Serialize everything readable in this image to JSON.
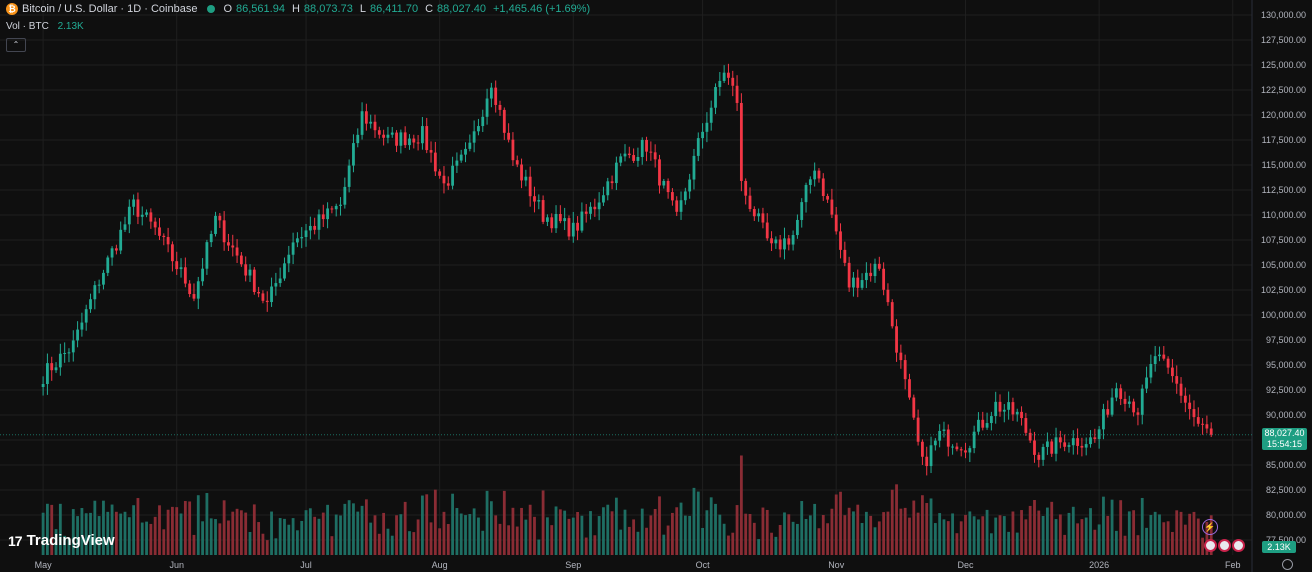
{
  "legend": {
    "symbol_text": "₿",
    "title": "Bitcoin / U.S. Dollar · 1D · Coinbase",
    "o_label": "O",
    "o_value": "86,561.94",
    "h_label": "H",
    "h_value": "88,073.73",
    "l_label": "L",
    "l_value": "86,411.70",
    "c_label": "C",
    "c_value": "88,027.40",
    "change": "+1,465.46 (+1.69%)"
  },
  "volume_legend": {
    "label": "Vol · BTC",
    "value": "2.13K"
  },
  "collapse_glyph": "⌃",
  "price_tag": {
    "price": "88,027.40",
    "countdown": "15:54:15"
  },
  "volume_tag": "2.13K",
  "brand": {
    "mark": "17",
    "name": "TradingView"
  },
  "colors": {
    "up": "#22ab94",
    "down": "#f23645",
    "volume_up": "#1e6e63",
    "volume_down": "#8a2c34",
    "background": "#0f0f0f",
    "grid": "#1f1f1f"
  },
  "chart_data": {
    "type": "candlestick",
    "title": "Bitcoin / U.S. Dollar · 1D · Coinbase",
    "y_ticks": [
      "130,000.00",
      "127,500.00",
      "125,000.00",
      "122,500.00",
      "120,000.00",
      "117,500.00",
      "115,000.00",
      "112,500.00",
      "110,000.00",
      "107,500.00",
      "105,000.00",
      "102,500.00",
      "100,000.00",
      "97,500.00",
      "95,000.00",
      "92,500.00",
      "90,000.00",
      "87,500.00",
      "85,000.00",
      "82,500.00",
      "80,000.00",
      "77,500.00"
    ],
    "x_ticks": [
      "May",
      "Jun",
      "Jul",
      "Aug",
      "Sep",
      "Oct",
      "Nov",
      "Dec",
      "2026",
      "Feb"
    ],
    "ylim": [
      77500,
      130000
    ],
    "close_anchors": [
      {
        "date": "2025-05-01",
        "close": 94000
      },
      {
        "date": "2025-05-08",
        "close": 97000
      },
      {
        "date": "2025-05-14",
        "close": 103500
      },
      {
        "date": "2025-05-22",
        "close": 111000
      },
      {
        "date": "2025-05-27",
        "close": 108500
      },
      {
        "date": "2025-06-05",
        "close": 102000
      },
      {
        "date": "2025-06-10",
        "close": 109500
      },
      {
        "date": "2025-06-17",
        "close": 104500
      },
      {
        "date": "2025-06-22",
        "close": 101000
      },
      {
        "date": "2025-06-28",
        "close": 107500
      },
      {
        "date": "2025-07-03",
        "close": 109000
      },
      {
        "date": "2025-07-09",
        "close": 111000
      },
      {
        "date": "2025-07-14",
        "close": 120000
      },
      {
        "date": "2025-07-20",
        "close": 117500
      },
      {
        "date": "2025-07-28",
        "close": 118000
      },
      {
        "date": "2025-08-02",
        "close": 113000
      },
      {
        "date": "2025-08-08",
        "close": 116500
      },
      {
        "date": "2025-08-13",
        "close": 123500
      },
      {
        "date": "2025-08-18",
        "close": 115500
      },
      {
        "date": "2025-08-25",
        "close": 110000
      },
      {
        "date": "2025-09-01",
        "close": 108500
      },
      {
        "date": "2025-09-06",
        "close": 111000
      },
      {
        "date": "2025-09-12",
        "close": 115500
      },
      {
        "date": "2025-09-18",
        "close": 117000
      },
      {
        "date": "2025-09-25",
        "close": 109500
      },
      {
        "date": "2025-10-01",
        "close": 118500
      },
      {
        "date": "2025-10-06",
        "close": 124500
      },
      {
        "date": "2025-10-09",
        "close": 121500
      },
      {
        "date": "2025-10-10",
        "close": 113000
      },
      {
        "date": "2025-10-17",
        "close": 106500
      },
      {
        "date": "2025-10-22",
        "close": 108000
      },
      {
        "date": "2025-10-27",
        "close": 115000
      },
      {
        "date": "2025-10-31",
        "close": 110000
      },
      {
        "date": "2025-11-04",
        "close": 103000
      },
      {
        "date": "2025-11-11",
        "close": 105000
      },
      {
        "date": "2025-11-17",
        "close": 93000
      },
      {
        "date": "2025-11-21",
        "close": 85000
      },
      {
        "date": "2025-11-25",
        "close": 88000
      },
      {
        "date": "2025-12-01",
        "close": 87000
      },
      {
        "date": "2025-12-08",
        "close": 91000
      },
      {
        "date": "2025-12-13",
        "close": 90000
      },
      {
        "date": "2025-12-18",
        "close": 86000
      },
      {
        "date": "2025-12-24",
        "close": 87500
      },
      {
        "date": "2025-12-31",
        "close": 87500
      },
      {
        "date": "2026-01-05",
        "close": 93000
      },
      {
        "date": "2026-01-10",
        "close": 90500
      },
      {
        "date": "2026-01-14",
        "close": 96000
      },
      {
        "date": "2026-01-19",
        "close": 93000
      },
      {
        "date": "2026-01-24",
        "close": 89000
      },
      {
        "date": "2026-01-27",
        "close": 88027
      }
    ]
  }
}
